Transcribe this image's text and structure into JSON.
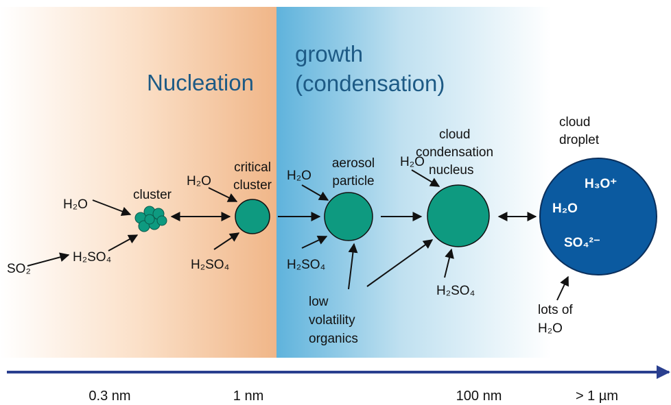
{
  "regions": {
    "nucleation": "Nucleation",
    "growth": [
      "growth",
      "(condensation)"
    ]
  },
  "nodes": {
    "cluster": [
      "cluster"
    ],
    "critical_cluster": [
      "critical",
      "cluster"
    ],
    "aerosol_particle": [
      "aerosol",
      "particle"
    ],
    "ccn": [
      "cloud",
      "condensation",
      "nucleus"
    ],
    "droplet": [
      "cloud",
      "droplet"
    ],
    "droplet_contents": [
      "H₃O⁺",
      "H₂O",
      "SO₄²⁻"
    ]
  },
  "molecules": [
    "SO₂",
    "H₂SO₄",
    "H₂O",
    "H₂O",
    "H₂SO₄",
    "H₂O",
    "H₂SO₄",
    "H₂O",
    "H₂SO₄"
  ],
  "organics": [
    "low",
    "volatility",
    "organics"
  ],
  "lots_of_water": [
    "lots of",
    "H₂O"
  ],
  "axis": {
    "ticks": [
      "0.3 nm",
      "1 nm",
      "100 nm",
      "> 1 µm"
    ]
  }
}
